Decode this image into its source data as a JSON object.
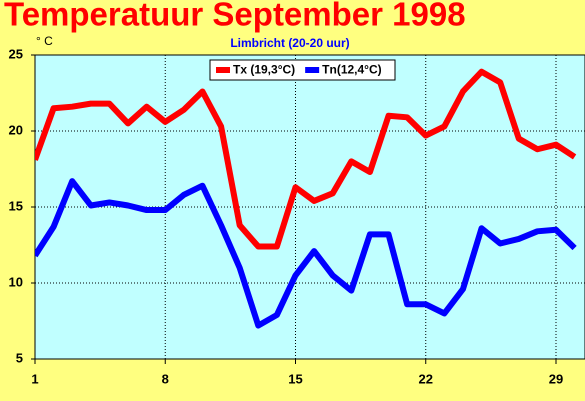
{
  "chart_data": {
    "type": "line",
    "title": "Temperatuur September 1998",
    "subtitle": "Limbricht (20-20 uur)",
    "y_label": "° C",
    "x": [
      1,
      2,
      3,
      4,
      5,
      6,
      7,
      8,
      9,
      10,
      11,
      12,
      13,
      14,
      15,
      16,
      17,
      18,
      19,
      20,
      21,
      22,
      23,
      24,
      25,
      26,
      27,
      28,
      29,
      30
    ],
    "series": [
      {
        "name": "Tx (19,3°C)",
        "color": "#ff0000",
        "values": [
          18.1,
          21.5,
          21.6,
          21.8,
          21.8,
          20.5,
          21.6,
          20.6,
          21.4,
          22.6,
          20.3,
          13.8,
          12.4,
          12.4,
          16.3,
          15.4,
          15.9,
          18.0,
          17.3,
          21.0,
          20.9,
          19.7,
          20.3,
          22.6,
          23.9,
          23.2,
          19.5,
          18.8,
          19.1,
          18.3
        ]
      },
      {
        "name": "Tn(12,4°C)",
        "color": "#0000ff",
        "values": [
          11.8,
          13.7,
          16.7,
          15.1,
          15.3,
          15.1,
          14.8,
          14.8,
          15.8,
          16.4,
          13.8,
          11.0,
          7.2,
          7.9,
          10.5,
          12.1,
          10.5,
          9.5,
          13.2,
          13.2,
          8.6,
          8.6,
          8.0,
          9.6,
          13.6,
          12.6,
          12.9,
          13.4,
          13.5,
          12.3
        ]
      }
    ],
    "xlim": [
      1,
      30
    ],
    "xticks": [
      1,
      8,
      15,
      22,
      29
    ],
    "ylim": [
      5,
      25
    ],
    "yticks": [
      5,
      10,
      15,
      20,
      25
    ],
    "grid": true,
    "legend": "top"
  }
}
